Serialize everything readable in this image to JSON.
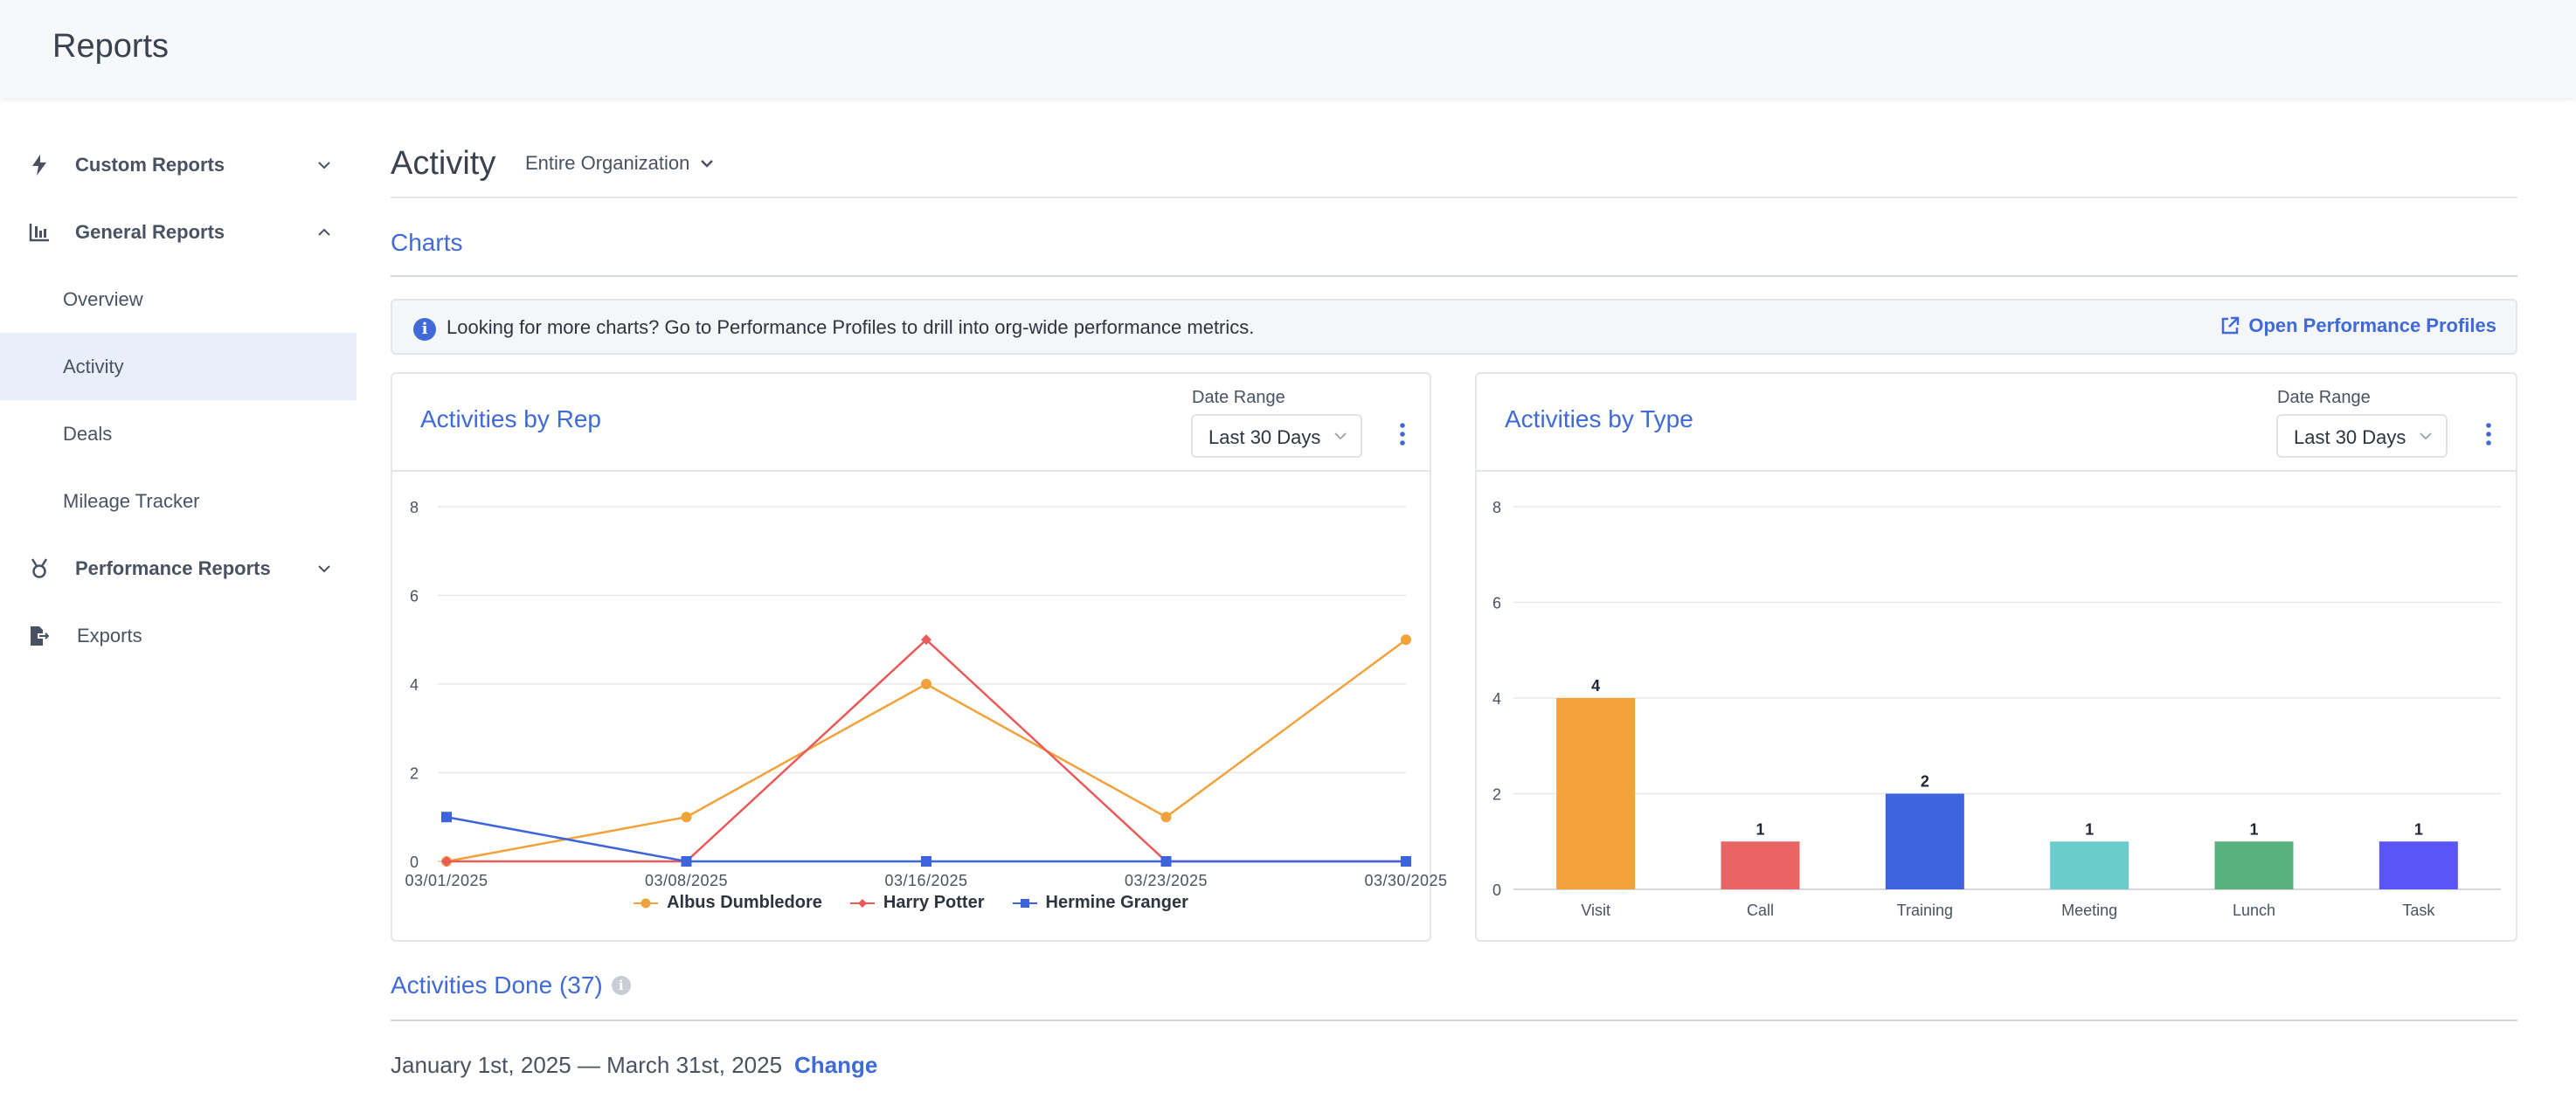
{
  "app": {
    "title": "Reports"
  },
  "sidebar": {
    "items": [
      {
        "label": "Custom Reports"
      },
      {
        "label": "General Reports"
      },
      {
        "label": "Overview"
      },
      {
        "label": "Activity"
      },
      {
        "label": "Deals"
      },
      {
        "label": "Mileage Tracker"
      },
      {
        "label": "Performance Reports"
      },
      {
        "label": "Exports"
      }
    ]
  },
  "header": {
    "title": "Activity",
    "scope": "Entire Organization"
  },
  "charts_section": {
    "title": "Charts"
  },
  "info": {
    "text": "Looking for more charts? Go to Performance Profiles to drill into org-wide performance metrics.",
    "link": "Open Performance Profiles"
  },
  "colors": {
    "accent": "#3f6ad8",
    "orange": "#f2a23a",
    "red": "#ea5a5a",
    "blue": "#3d63dd",
    "teal": "#6ccbcc",
    "green": "#58b27c",
    "indigo": "#5a55f5"
  },
  "card_rep": {
    "title": "Activities by Rep",
    "date_label": "Date Range",
    "date_value": "Last 30 Days"
  },
  "card_type": {
    "title": "Activities by Type",
    "date_label": "Date Range",
    "date_value": "Last 30 Days"
  },
  "chart_data": [
    {
      "type": "line",
      "x": [
        "03/01/2025",
        "03/08/2025",
        "03/16/2025",
        "03/23/2025",
        "03/30/2025"
      ],
      "ylim": [
        0,
        8
      ],
      "yticks": [
        "0",
        "2",
        "4",
        "6",
        "8"
      ],
      "grid": true,
      "legend": "bottom",
      "series": [
        {
          "name": "Albus Dumbledore",
          "values": [
            0,
            1,
            4,
            1,
            5
          ],
          "color": "#f2a23a",
          "marker": "circle"
        },
        {
          "name": "Harry Potter",
          "values": [
            0,
            0,
            5,
            0,
            0
          ],
          "color": "#ea5a5a",
          "marker": "diamond"
        },
        {
          "name": "Hermine Granger",
          "values": [
            1,
            0,
            0,
            0,
            0
          ],
          "color": "#3d63dd",
          "marker": "square"
        }
      ]
    },
    {
      "type": "bar",
      "categories": [
        "Visit",
        "Call",
        "Training",
        "Meeting",
        "Lunch",
        "Task"
      ],
      "values": [
        4,
        1,
        2,
        1,
        1,
        1
      ],
      "value_labels": [
        "4",
        "1",
        "2",
        "1",
        "1",
        "1"
      ],
      "colors": [
        "#f2a23a",
        "#ea6464",
        "#3d63dd",
        "#6ccbcc",
        "#58b27c",
        "#5a55f5"
      ],
      "ylim": [
        0,
        8
      ],
      "yticks": [
        "0",
        "2",
        "4",
        "6",
        "8"
      ],
      "grid": true
    }
  ],
  "activities_done": {
    "title": "Activities Done (37)",
    "range": "January 1st, 2025 — March 31st, 2025",
    "change": "Change"
  }
}
